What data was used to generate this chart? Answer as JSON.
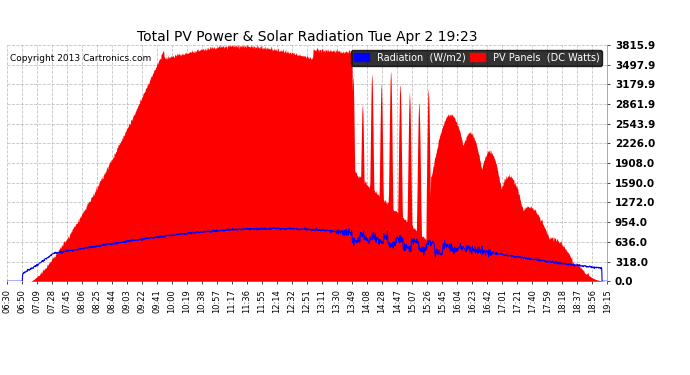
{
  "title": "Total PV Power & Solar Radiation Tue Apr 2 19:23",
  "copyright": "Copyright 2013 Cartronics.com",
  "background_color": "#ffffff",
  "plot_bg_color": "#ffffff",
  "grid_color": "#aaaaaa",
  "pv_color": "#ff0000",
  "radiation_color": "#0000ff",
  "ytick_labels": [
    "0.0",
    "318.0",
    "636.0",
    "954.0",
    "1272.0",
    "1590.0",
    "1908.0",
    "2226.0",
    "2543.9",
    "2861.9",
    "3179.9",
    "3497.9",
    "3815.9"
  ],
  "ytick_values": [
    0,
    318,
    636,
    954,
    1272,
    1590,
    1908,
    2226,
    2543.9,
    2861.9,
    3179.9,
    3497.9,
    3815.9
  ],
  "ymax": 3815.9,
  "xtick_labels": [
    "06:30",
    "06:50",
    "07:09",
    "07:28",
    "07:45",
    "08:06",
    "08:25",
    "08:44",
    "09:03",
    "09:22",
    "09:41",
    "10:00",
    "10:19",
    "10:38",
    "10:57",
    "11:17",
    "11:36",
    "11:55",
    "12:14",
    "12:32",
    "12:51",
    "13:11",
    "13:30",
    "13:49",
    "14:08",
    "14:28",
    "14:47",
    "15:07",
    "15:26",
    "15:45",
    "16:04",
    "16:23",
    "16:42",
    "17:01",
    "17:21",
    "17:40",
    "17:59",
    "18:18",
    "18:37",
    "18:56",
    "19:15"
  ],
  "legend_radiation_label": "Radiation  (W/m2)",
  "legend_pv_label": "PV Panels  (DC Watts)"
}
